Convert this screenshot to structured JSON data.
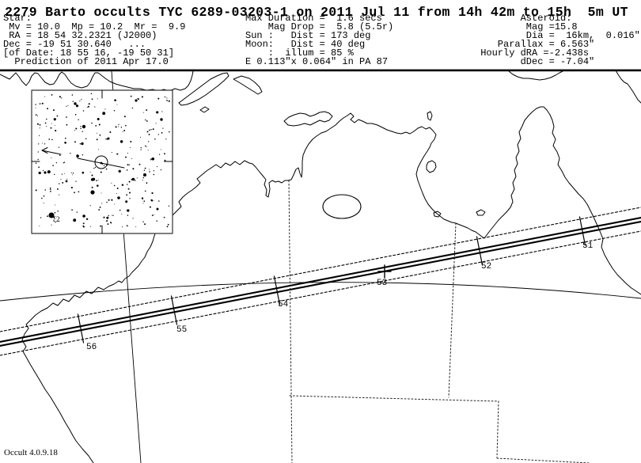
{
  "title": "2279 Barto occults TYC 6289-03203-1 on 2011 Jul 11 from 14h 42m to 15h  5m UT",
  "header": {
    "star_block": "Star:\n Mv = 10.0  Mp = 10.2  Mr =  9.9\n RA = 18 54 32.2321 (J2000)\nDec = -19 51 30.640   ...\n[of Date: 18 55 16, -19 50 31]\n  Prediction of 2011 Apr 17.0",
    "event_block": "Max Duration =  1.6 secs\n    Mag Drop =  5.8 (5.5r)\nSun :   Dist = 173 deg\nMoon:   Dist = 40 deg\n    :  illum = 85 %\nE 0.113\"x 0.064\" in PA 87",
    "asteroid_block": "        Asteroid:\n         Mag =15.8\n         Dia =  16km,  0.016\"\n    Parallax = 6.563\"\n Hourly dRA =-2.438s\n        dDec = -7.04\""
  },
  "map": {
    "time_ticks": [
      {
        "label": "51"
      },
      {
        "label": "52"
      },
      {
        "label": "53"
      },
      {
        "label": "54"
      },
      {
        "label": "55"
      },
      {
        "label": "56"
      }
    ],
    "finder_chart": {
      "bright_star_label": "ξ2"
    },
    "version": "Occult 4.0.9.18"
  }
}
